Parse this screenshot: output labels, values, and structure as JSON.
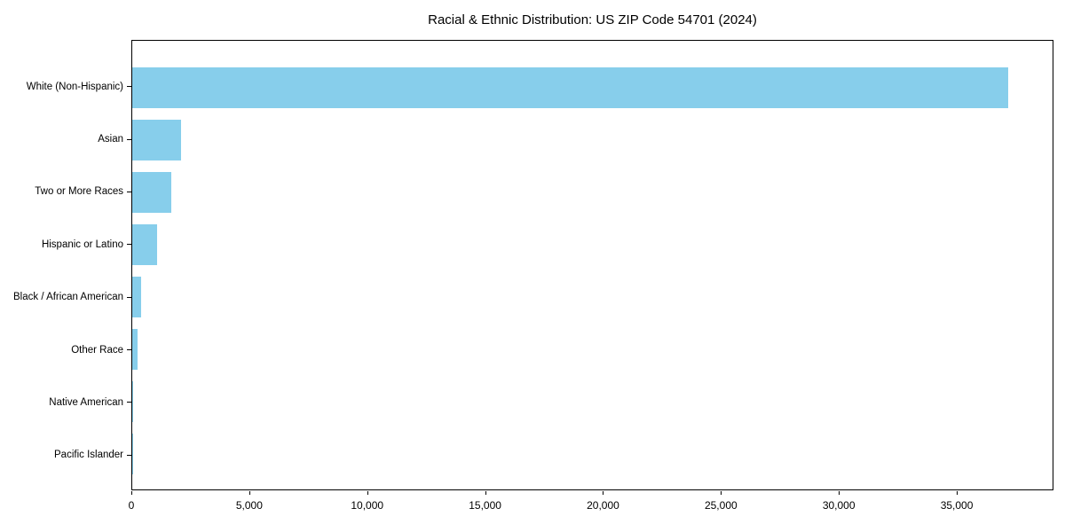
{
  "title": "Racial & Ethnic Distribution: US ZIP Code 54701 (2024)",
  "colors": {
    "bar": "#87CEEB",
    "axis": "#000000",
    "background": "#FFFFFF",
    "text": "#000000"
  },
  "chart_data": {
    "type": "bar",
    "orientation": "horizontal",
    "title": "Racial & Ethnic Distribution: US ZIP Code 54701 (2024)",
    "xlabel": "",
    "ylabel": "",
    "categories": [
      "White (Non-Hispanic)",
      "Asian",
      "Two or More Races",
      "Hispanic or Latino",
      "Black / African American",
      "Other Race",
      "Native American",
      "Pacific Islander"
    ],
    "values": [
      37200,
      2060,
      1660,
      1040,
      385,
      225,
      55,
      12
    ],
    "xlim": [
      0,
      39100
    ],
    "xticks": [
      0,
      5000,
      10000,
      15000,
      20000,
      25000,
      30000,
      35000
    ],
    "xtick_labels": [
      "0",
      "5,000",
      "10,000",
      "15,000",
      "20,000",
      "25,000",
      "30,000",
      "35,000"
    ],
    "grid": false,
    "legend": null,
    "bar_color": "#87CEEB"
  }
}
